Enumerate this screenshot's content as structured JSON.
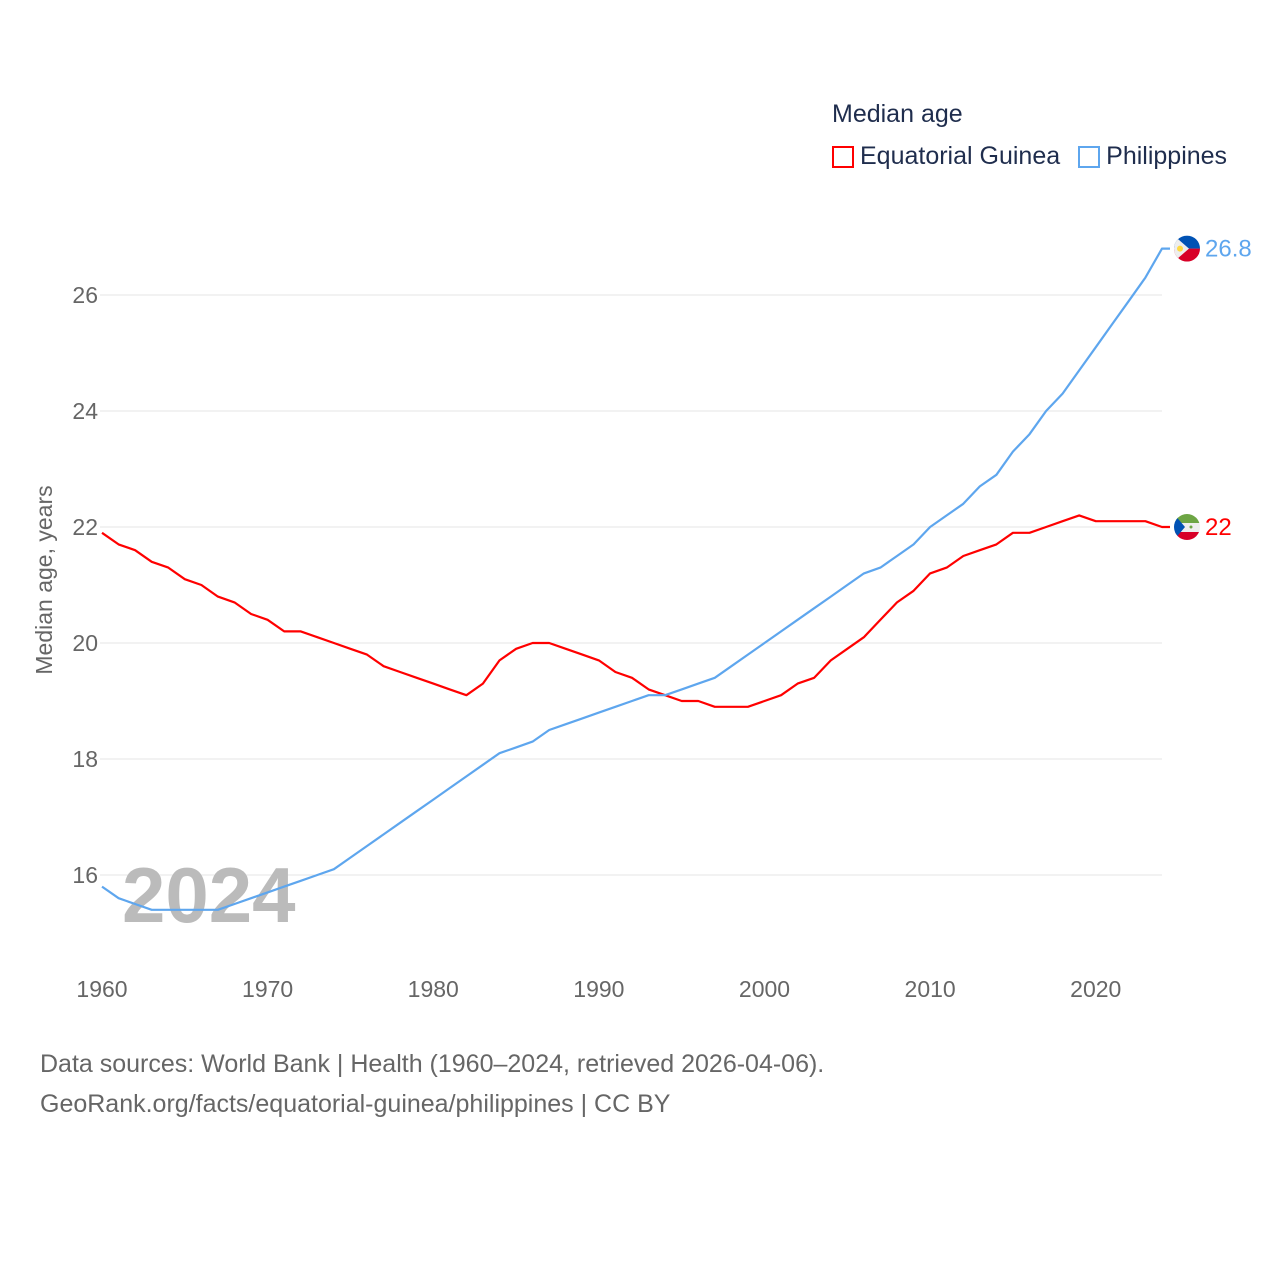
{
  "chart_data": {
    "type": "line",
    "title": "Median age",
    "xlabel": "",
    "ylabel": "Median age, years",
    "xlim": [
      1960,
      2024
    ],
    "ylim": [
      15,
      27.4
    ],
    "x_ticks": [
      1960,
      1970,
      1980,
      1990,
      2000,
      2010,
      2020
    ],
    "y_ticks": [
      16,
      18,
      20,
      22,
      24,
      26
    ],
    "grid": true,
    "legend_placement": "top-right",
    "watermark_year": "2024",
    "x": [
      1960,
      1961,
      1962,
      1963,
      1964,
      1965,
      1966,
      1967,
      1968,
      1969,
      1970,
      1971,
      1972,
      1973,
      1974,
      1975,
      1976,
      1977,
      1978,
      1979,
      1980,
      1981,
      1982,
      1983,
      1984,
      1985,
      1986,
      1987,
      1988,
      1989,
      1990,
      1991,
      1992,
      1993,
      1994,
      1995,
      1996,
      1997,
      1998,
      1999,
      2000,
      2001,
      2002,
      2003,
      2004,
      2005,
      2006,
      2007,
      2008,
      2009,
      2010,
      2011,
      2012,
      2013,
      2014,
      2015,
      2016,
      2017,
      2018,
      2019,
      2020,
      2021,
      2022,
      2023,
      2024
    ],
    "series": [
      {
        "name": "Equatorial Guinea",
        "color": "#ff0000",
        "end_label": "22",
        "flag": "equatorial-guinea",
        "values": [
          21.9,
          21.7,
          21.6,
          21.4,
          21.3,
          21.1,
          21.0,
          20.8,
          20.7,
          20.5,
          20.4,
          20.2,
          20.2,
          20.1,
          20.0,
          19.9,
          19.8,
          19.6,
          19.5,
          19.4,
          19.3,
          19.2,
          19.1,
          19.3,
          19.7,
          19.9,
          20.0,
          20.0,
          19.9,
          19.8,
          19.7,
          19.5,
          19.4,
          19.2,
          19.1,
          19.0,
          19.0,
          18.9,
          18.9,
          18.9,
          19.0,
          19.1,
          19.3,
          19.4,
          19.7,
          19.9,
          20.1,
          20.4,
          20.7,
          20.9,
          21.2,
          21.3,
          21.5,
          21.6,
          21.7,
          21.9,
          21.9,
          22.0,
          22.1,
          22.2,
          22.1,
          22.1,
          22.1,
          22.1,
          22.0
        ]
      },
      {
        "name": "Philippines",
        "color": "#5ea6ee",
        "end_label": "26.8",
        "flag": "philippines",
        "values": [
          15.8,
          15.6,
          15.5,
          15.4,
          15.4,
          15.4,
          15.4,
          15.4,
          15.5,
          15.6,
          15.7,
          15.8,
          15.9,
          16.0,
          16.1,
          16.3,
          16.5,
          16.7,
          16.9,
          17.1,
          17.3,
          17.5,
          17.7,
          17.9,
          18.1,
          18.2,
          18.3,
          18.5,
          18.6,
          18.7,
          18.8,
          18.9,
          19.0,
          19.1,
          19.1,
          19.2,
          19.3,
          19.4,
          19.6,
          19.8,
          20.0,
          20.2,
          20.4,
          20.6,
          20.8,
          21.0,
          21.2,
          21.3,
          21.5,
          21.7,
          22.0,
          22.2,
          22.4,
          22.7,
          22.9,
          23.3,
          23.6,
          24.0,
          24.3,
          24.7,
          25.1,
          25.5,
          25.9,
          26.3,
          26.8
        ]
      }
    ]
  },
  "footer": {
    "line1": "Data sources: World Bank | Health (1960–2024, retrieved 2026-04-06).",
    "line2": "GeoRank.org/facts/equatorial-guinea/philippines | CC BY"
  }
}
